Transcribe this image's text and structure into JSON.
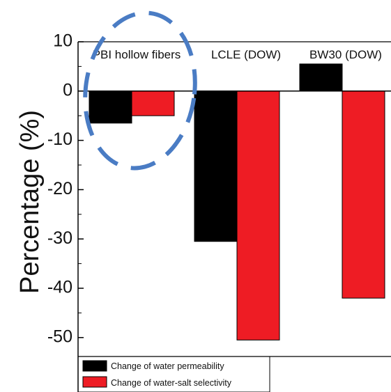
{
  "chart_data": {
    "type": "bar",
    "title": "",
    "xlabel": "",
    "ylabel": "Percentage (%)",
    "categories": [
      "PBI hollow fibers",
      "LCLE (DOW)",
      "BW30 (DOW)"
    ],
    "series": [
      {
        "name": "Change of water permeability",
        "color": "#000000",
        "values": [
          -6.5,
          -30.5,
          5.5
        ]
      },
      {
        "name": "Change of water-salt selectivity",
        "color": "#ee1c24",
        "values": [
          -5,
          -50.5,
          -42
        ]
      }
    ],
    "ylim": [
      -55,
      10
    ],
    "yticks": [
      10,
      0,
      -10,
      -20,
      -30,
      -40,
      -50
    ],
    "grid": false,
    "legend_position": "bottom-left",
    "annotation": {
      "shape": "dashed-ellipse",
      "color": "#4a7cc4",
      "target": "PBI hollow fibers"
    }
  }
}
